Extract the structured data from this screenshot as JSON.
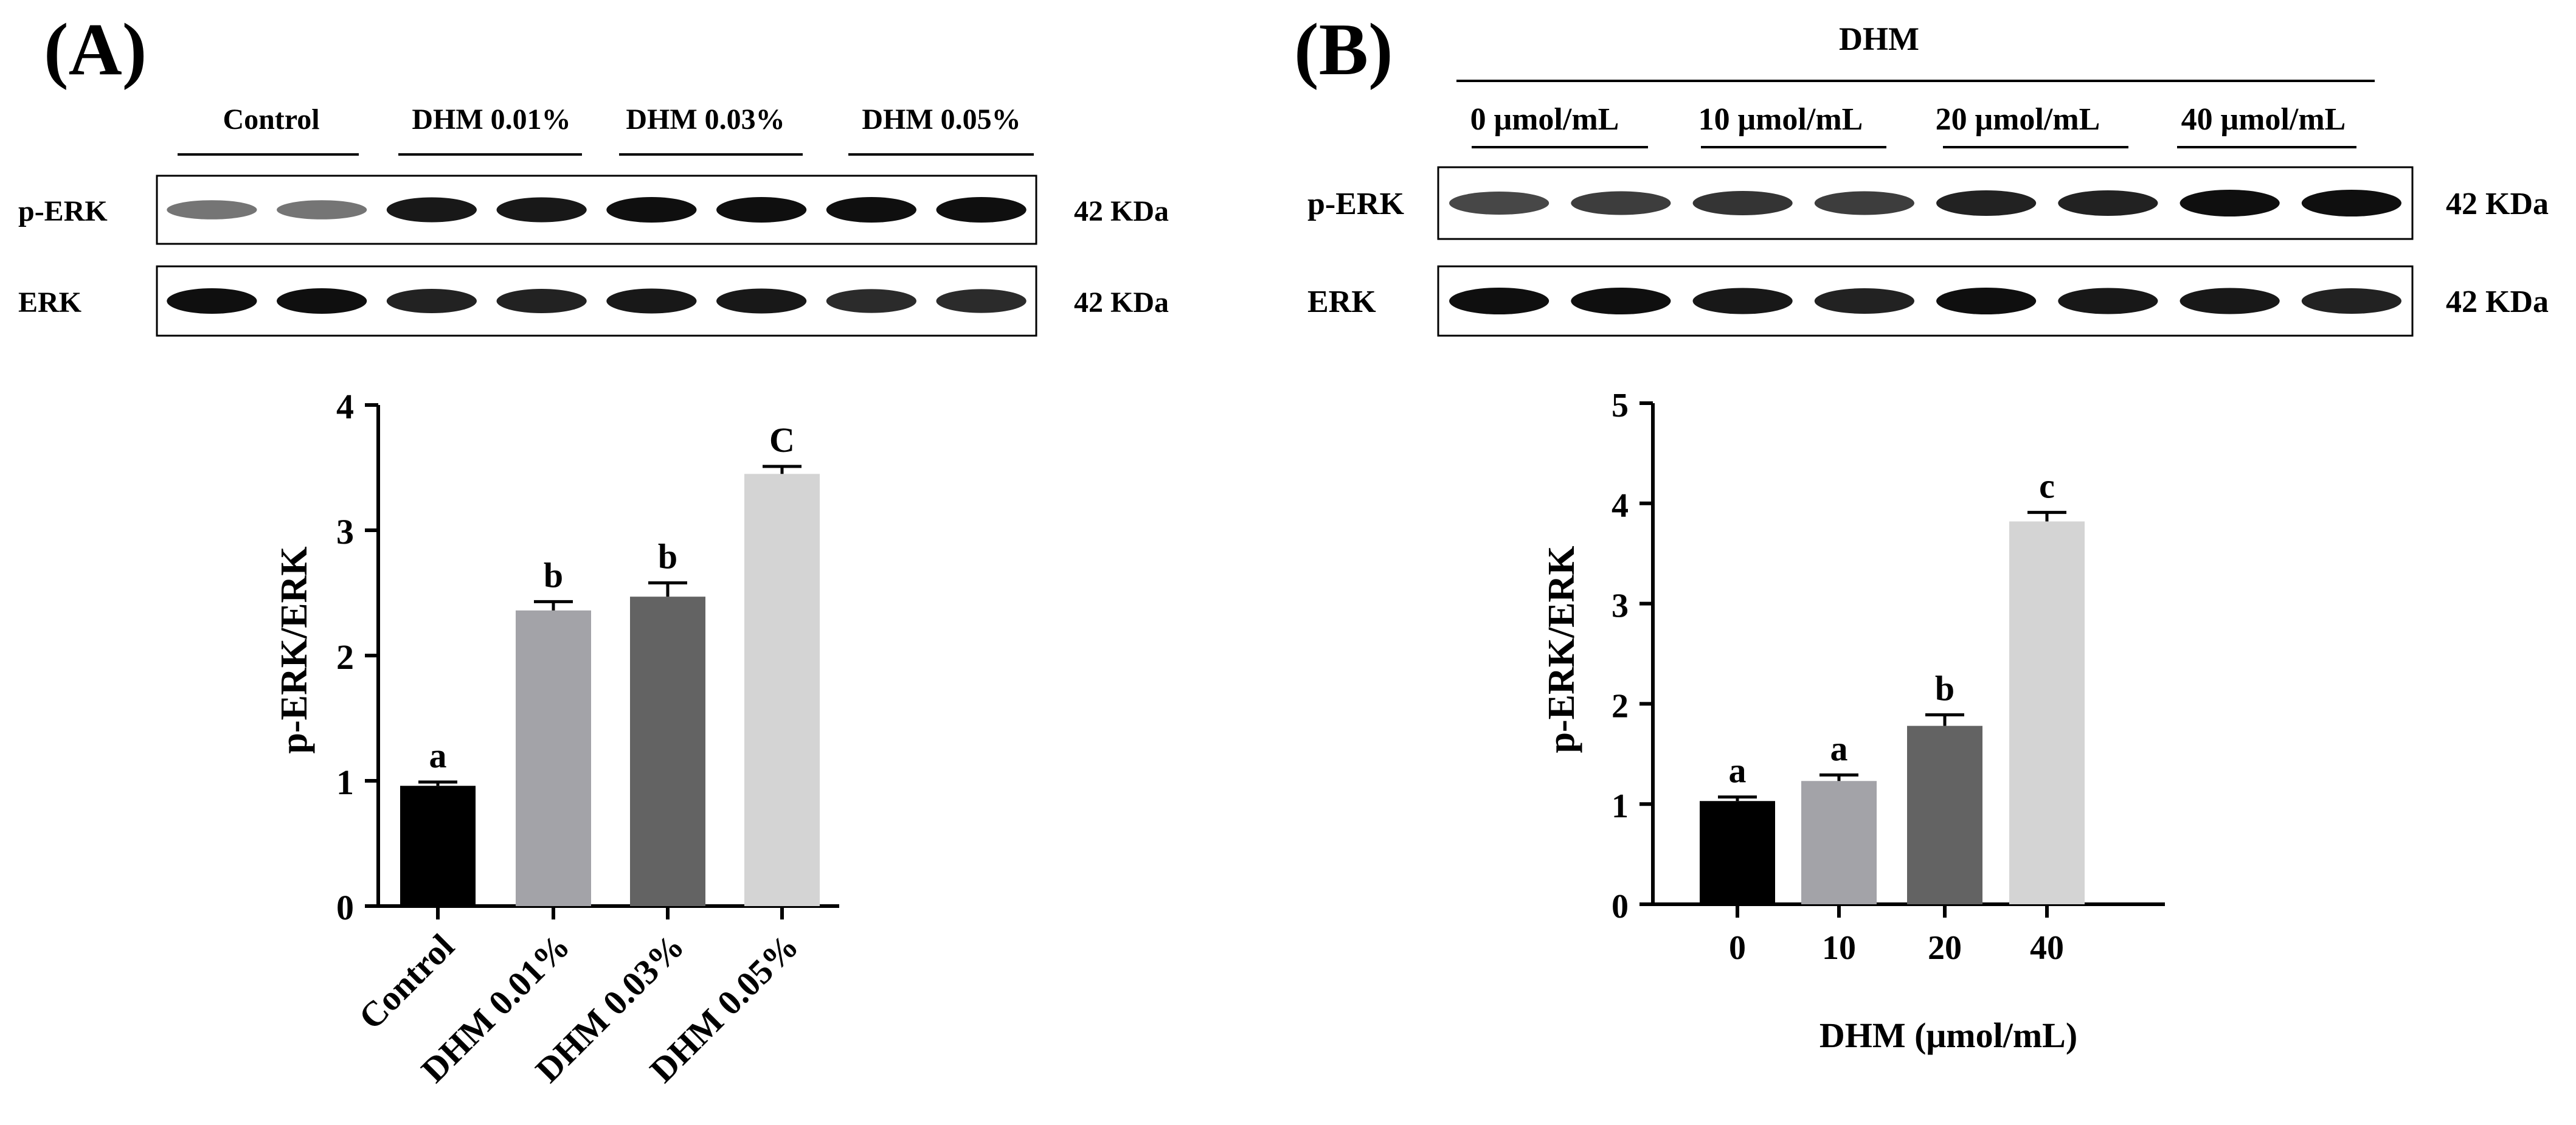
{
  "panel_a": {
    "label": "(A)",
    "blot": {
      "groups": [
        "Control",
        "DHM 0.01%",
        "DHM 0.03%",
        "DHM 0.05%"
      ],
      "rows": [
        {
          "name": "p-ERK",
          "size": "42 KDa",
          "intensity": [
            0.45,
            0.45,
            0.95,
            0.95,
            1.0,
            1.0,
            1.0,
            1.0
          ]
        },
        {
          "name": "ERK",
          "size": "42 KDa",
          "intensity": [
            1.0,
            1.0,
            0.9,
            0.9,
            0.95,
            0.95,
            0.85,
            0.85
          ]
        }
      ]
    }
  },
  "panel_b": {
    "label": "(B)",
    "blot": {
      "header": "DHM",
      "groups": [
        "0 μmol/mL",
        "10 μmol/mL",
        "20 μmol/mL",
        "40 μmol/mL"
      ],
      "rows": [
        {
          "name": "p-ERK",
          "size": "42 KDa",
          "intensity": [
            0.7,
            0.75,
            0.8,
            0.75,
            0.9,
            0.9,
            1.0,
            1.0
          ]
        },
        {
          "name": "ERK",
          "size": "42 KDa",
          "intensity": [
            1.0,
            1.0,
            0.95,
            0.9,
            1.0,
            0.95,
            0.95,
            0.9
          ]
        }
      ]
    }
  },
  "chart_data": [
    {
      "type": "bar",
      "panel": "A",
      "categories": [
        "Control",
        "DHM 0.01%",
        "DHM 0.03%",
        "DHM 0.05%"
      ],
      "values": [
        0.96,
        2.36,
        2.47,
        3.45
      ],
      "errors": [
        0.03,
        0.07,
        0.11,
        0.06
      ],
      "significance": [
        "a",
        "b",
        "b",
        "C"
      ],
      "colors": [
        "#000000",
        "#a3a3a8",
        "#636363",
        "#d4d4d4"
      ],
      "title": "",
      "xlabel": "",
      "ylabel": "p-ERK/ERK",
      "ylim": [
        0,
        4
      ],
      "yticks": [
        "0",
        "1",
        "2",
        "3",
        "4"
      ],
      "xtick_rotation": -45
    },
    {
      "type": "bar",
      "panel": "B",
      "categories": [
        "0",
        "10",
        "20",
        "40"
      ],
      "values": [
        1.03,
        1.23,
        1.78,
        3.82
      ],
      "errors": [
        0.04,
        0.06,
        0.11,
        0.09
      ],
      "significance": [
        "a",
        "a",
        "b",
        "c"
      ],
      "colors": [
        "#000000",
        "#a3a3a8",
        "#636363",
        "#d4d4d4"
      ],
      "title": "",
      "xlabel": "DHM (μmol/mL)",
      "ylabel": "p-ERK/ERK",
      "ylim": [
        0,
        5
      ],
      "yticks": [
        "0",
        "1",
        "2",
        "3",
        "4",
        "5"
      ],
      "xtick_rotation": 0
    }
  ]
}
